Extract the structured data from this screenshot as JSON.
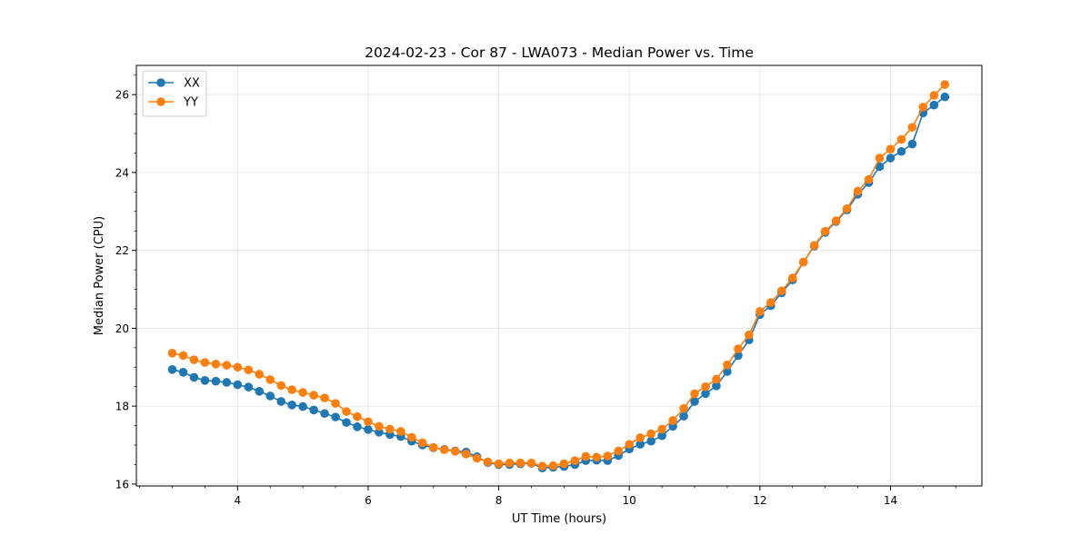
{
  "chart_data": {
    "type": "line",
    "title": "2024-02-23 - Cor 87 - LWA073 - Median Power vs. Time",
    "xlabel": "UT Time (hours)",
    "ylabel": "Median Power (CPU)",
    "xlim": [
      2.45,
      15.4
    ],
    "ylim": [
      15.95,
      26.75
    ],
    "xticks": [
      4,
      6,
      8,
      10,
      12,
      14
    ],
    "yticks": [
      16,
      18,
      20,
      22,
      24,
      26
    ],
    "grid": true,
    "legend_position": "top-left",
    "series": [
      {
        "name": "XX",
        "color": "#1f77b4",
        "x": [
          3.0,
          3.167,
          3.333,
          3.5,
          3.667,
          3.833,
          4.0,
          4.167,
          4.333,
          4.5,
          4.667,
          4.833,
          5.0,
          5.167,
          5.333,
          5.5,
          5.667,
          5.833,
          6.0,
          6.167,
          6.333,
          6.5,
          6.667,
          6.833,
          7.0,
          7.167,
          7.333,
          7.5,
          7.667,
          7.833,
          8.0,
          8.167,
          8.333,
          8.5,
          8.667,
          8.833,
          9.0,
          9.167,
          9.333,
          9.5,
          9.667,
          9.833,
          10.0,
          10.167,
          10.333,
          10.5,
          10.667,
          10.833,
          11.0,
          11.167,
          11.333,
          11.5,
          11.667,
          11.833,
          12.0,
          12.167,
          12.333,
          12.5,
          12.667,
          12.833,
          13.0,
          13.167,
          13.333,
          13.5,
          13.667,
          13.833,
          14.0,
          14.167,
          14.333,
          14.5,
          14.667,
          14.833
        ],
        "values": [
          18.94,
          18.87,
          18.74,
          18.66,
          18.64,
          18.61,
          18.55,
          18.49,
          18.38,
          18.26,
          18.12,
          18.03,
          17.99,
          17.9,
          17.81,
          17.72,
          17.58,
          17.47,
          17.4,
          17.33,
          17.27,
          17.22,
          17.1,
          17.0,
          16.93,
          16.89,
          16.85,
          16.82,
          16.7,
          16.55,
          16.5,
          16.5,
          16.52,
          16.53,
          16.41,
          16.43,
          16.45,
          16.5,
          16.6,
          16.61,
          16.6,
          16.73,
          16.9,
          17.02,
          17.1,
          17.24,
          17.48,
          17.74,
          18.12,
          18.32,
          18.52,
          18.89,
          19.3,
          19.7,
          20.35,
          20.58,
          20.91,
          21.24,
          21.7,
          22.11,
          22.46,
          22.74,
          23.04,
          23.44,
          23.74,
          24.15,
          24.37,
          24.54,
          24.73,
          25.53,
          25.73,
          25.94
        ]
      },
      {
        "name": "YY",
        "color": "#ff7f0e",
        "x": [
          3.0,
          3.167,
          3.333,
          3.5,
          3.667,
          3.833,
          4.0,
          4.167,
          4.333,
          4.5,
          4.667,
          4.833,
          5.0,
          5.167,
          5.333,
          5.5,
          5.667,
          5.833,
          6.0,
          6.167,
          6.333,
          6.5,
          6.667,
          6.833,
          7.0,
          7.167,
          7.333,
          7.5,
          7.667,
          7.833,
          8.0,
          8.167,
          8.333,
          8.5,
          8.667,
          8.833,
          9.0,
          9.167,
          9.333,
          9.5,
          9.667,
          9.833,
          10.0,
          10.167,
          10.333,
          10.5,
          10.667,
          10.833,
          11.0,
          11.167,
          11.333,
          11.5,
          11.667,
          11.833,
          12.0,
          12.167,
          12.333,
          12.5,
          12.667,
          12.833,
          13.0,
          13.167,
          13.333,
          13.5,
          13.667,
          13.833,
          14.0,
          14.167,
          14.333,
          14.5,
          14.667,
          14.833
        ],
        "values": [
          19.36,
          19.3,
          19.19,
          19.12,
          19.08,
          19.05,
          19.0,
          18.93,
          18.82,
          18.68,
          18.53,
          18.42,
          18.35,
          18.28,
          18.21,
          18.07,
          17.86,
          17.73,
          17.6,
          17.48,
          17.41,
          17.35,
          17.2,
          17.06,
          16.94,
          16.88,
          16.84,
          16.77,
          16.66,
          16.57,
          16.52,
          16.54,
          16.54,
          16.54,
          16.46,
          16.47,
          16.52,
          16.6,
          16.71,
          16.69,
          16.72,
          16.85,
          17.02,
          17.19,
          17.29,
          17.41,
          17.63,
          17.94,
          18.32,
          18.5,
          18.69,
          19.06,
          19.47,
          19.83,
          20.43,
          20.66,
          20.96,
          21.29,
          21.7,
          22.13,
          22.49,
          22.76,
          23.07,
          23.52,
          23.82,
          24.37,
          24.6,
          24.85,
          25.16,
          25.68,
          25.98,
          26.26
        ]
      }
    ]
  }
}
